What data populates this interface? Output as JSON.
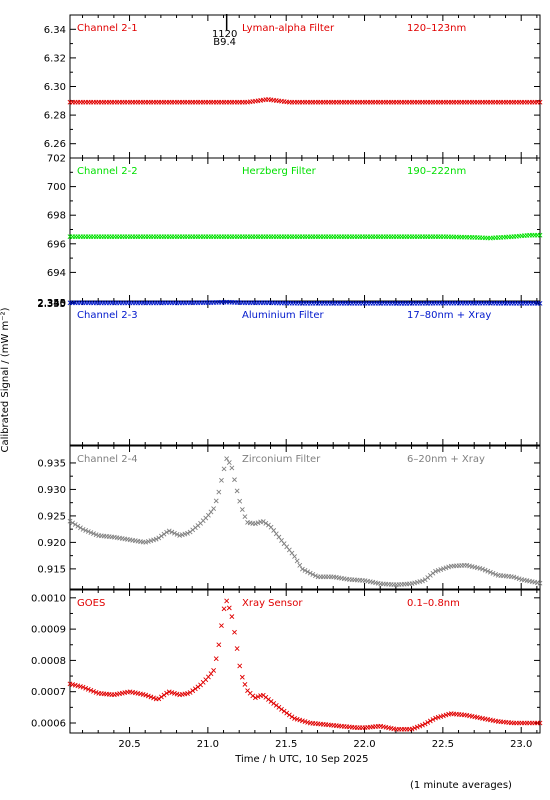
{
  "chart_data": {
    "type": "scatter",
    "xlabel": "Time / h UTC, 10 Sep 2025",
    "ylabel": "Calibrated Signal / (mW m⁻²)",
    "xlim": [
      20.12,
      23.12
    ],
    "xticks": [
      20.5,
      21.0,
      21.5,
      22.0,
      22.5,
      23.0
    ],
    "xtick_labels": [
      "20.5",
      "21.0",
      "21.5",
      "22.0",
      "22.5",
      "23.0"
    ],
    "footnote": "(1 minute averages)",
    "event_marker": {
      "x": 21.12,
      "label_top": "1120",
      "label_bottom": "B9.4"
    },
    "panels": [
      {
        "channel": "Channel 2-1",
        "filter": "Lyman-alpha Filter",
        "band": "120–123nm",
        "color": "#e00000",
        "marker": "x",
        "ylim": [
          6.25,
          6.35
        ],
        "yticks": [
          6.26,
          6.28,
          6.3,
          6.32,
          6.34
        ],
        "ytick_labels": [
          "6.26",
          "6.28",
          "6.30",
          "6.32",
          "6.34"
        ],
        "points": [
          [
            20.12,
            6.289
          ],
          [
            20.5,
            6.289
          ],
          [
            21.0,
            6.289
          ],
          [
            21.25,
            6.289
          ],
          [
            21.32,
            6.29
          ],
          [
            21.38,
            6.291
          ],
          [
            21.45,
            6.29
          ],
          [
            21.52,
            6.289
          ],
          [
            22.0,
            6.289
          ],
          [
            22.5,
            6.289
          ],
          [
            23.12,
            6.289
          ]
        ]
      },
      {
        "channel": "Channel 2-2",
        "filter": "Herzberg Filter",
        "band": "190–222nm",
        "color": "#00e000",
        "marker": "x",
        "ylim": [
          692.0,
          702.0
        ],
        "yticks": [
          694,
          696,
          698,
          700,
          702
        ],
        "ytick_labels": [
          "694",
          "696",
          "698",
          "700",
          "702"
        ],
        "points": [
          [
            20.12,
            696.5
          ],
          [
            20.5,
            696.5
          ],
          [
            21.0,
            696.5
          ],
          [
            21.5,
            696.5
          ],
          [
            22.0,
            696.5
          ],
          [
            22.5,
            696.5
          ],
          [
            22.7,
            696.45
          ],
          [
            22.8,
            696.4
          ],
          [
            22.95,
            696.5
          ],
          [
            23.05,
            696.6
          ],
          [
            23.12,
            696.6
          ]
        ]
      },
      {
        "channel": "Channel 2-3",
        "filter": "Aluminium Filter",
        "band": "17–80nm + Xray",
        "color": "#0018cc",
        "marker": "x",
        "ylim": [
          0.3345,
          2.3545
        ],
        "yticks": [
          2.335,
          2.34,
          2.345,
          2.35
        ],
        "ytick_labels": [
          "2.335",
          "2.340",
          "2.345",
          "2.350"
        ],
        "points": [
          [
            20.12,
            2.343
          ],
          [
            20.2,
            2.3425
          ],
          [
            20.3,
            2.3415
          ],
          [
            20.4,
            2.3412
          ],
          [
            20.5,
            2.341
          ],
          [
            20.6,
            2.3405
          ],
          [
            20.68,
            2.3412
          ],
          [
            20.75,
            2.3422
          ],
          [
            20.8,
            2.3415
          ],
          [
            20.85,
            2.3418
          ],
          [
            20.92,
            2.343
          ],
          [
            21.0,
            2.3447
          ],
          [
            21.03,
            2.3453
          ],
          [
            21.06,
            2.3488
          ],
          [
            21.09,
            2.3505
          ],
          [
            21.11,
            2.3518
          ],
          [
            21.14,
            2.3508
          ],
          [
            21.17,
            2.348
          ],
          [
            21.2,
            2.346
          ],
          [
            21.23,
            2.3432
          ],
          [
            21.27,
            2.3423
          ],
          [
            21.3,
            2.3428
          ],
          [
            21.35,
            2.3432
          ],
          [
            21.4,
            2.3425
          ],
          [
            21.45,
            2.3398
          ],
          [
            21.52,
            2.3378
          ],
          [
            21.6,
            2.336
          ],
          [
            21.7,
            2.3357
          ],
          [
            21.8,
            2.3357
          ],
          [
            21.9,
            2.3353
          ],
          [
            22.0,
            2.335
          ],
          [
            22.1,
            2.335
          ],
          [
            22.2,
            2.3348
          ],
          [
            22.3,
            2.3348
          ],
          [
            22.38,
            2.3354
          ],
          [
            22.45,
            2.3368
          ],
          [
            22.55,
            2.3375
          ],
          [
            22.65,
            2.3374
          ],
          [
            22.75,
            2.337
          ],
          [
            22.85,
            2.3365
          ],
          [
            22.95,
            2.3365
          ],
          [
            23.0,
            2.3355
          ],
          [
            23.12,
            2.3353
          ]
        ]
      },
      {
        "channel": "Channel 2-4",
        "filter": "Zirconium Filter",
        "band": "6–20nm + Xray",
        "color": "#808080",
        "marker": "x",
        "ylim": [
          0.9112,
          0.9382
        ],
        "yticks": [
          0.915,
          0.92,
          0.925,
          0.93,
          0.935
        ],
        "ytick_labels": [
          "0.915",
          "0.920",
          "0.925",
          "0.930",
          "0.935"
        ],
        "points": [
          [
            20.12,
            0.924
          ],
          [
            20.2,
            0.9225
          ],
          [
            20.3,
            0.9213
          ],
          [
            20.4,
            0.921
          ],
          [
            20.5,
            0.9205
          ],
          [
            20.6,
            0.92
          ],
          [
            20.68,
            0.9207
          ],
          [
            20.75,
            0.9222
          ],
          [
            20.82,
            0.9213
          ],
          [
            20.88,
            0.9218
          ],
          [
            20.95,
            0.9235
          ],
          [
            21.0,
            0.925
          ],
          [
            21.04,
            0.9265
          ],
          [
            21.07,
            0.9295
          ],
          [
            21.1,
            0.9335
          ],
          [
            21.12,
            0.9358
          ],
          [
            21.15,
            0.9345
          ],
          [
            21.18,
            0.9305
          ],
          [
            21.21,
            0.927
          ],
          [
            21.25,
            0.9238
          ],
          [
            21.3,
            0.9235
          ],
          [
            21.35,
            0.924
          ],
          [
            21.4,
            0.923
          ],
          [
            21.48,
            0.92
          ],
          [
            21.55,
            0.9175
          ],
          [
            21.6,
            0.915
          ],
          [
            21.7,
            0.9135
          ],
          [
            21.8,
            0.9135
          ],
          [
            21.9,
            0.913
          ],
          [
            22.0,
            0.9128
          ],
          [
            22.1,
            0.9122
          ],
          [
            22.2,
            0.912
          ],
          [
            22.3,
            0.9122
          ],
          [
            22.38,
            0.9128
          ],
          [
            22.45,
            0.9145
          ],
          [
            22.55,
            0.9155
          ],
          [
            22.65,
            0.9157
          ],
          [
            22.75,
            0.915
          ],
          [
            22.85,
            0.9138
          ],
          [
            22.95,
            0.9135
          ],
          [
            23.0,
            0.913
          ],
          [
            23.12,
            0.9123
          ]
        ]
      },
      {
        "channel": "GOES",
        "filter": "Xray Sensor",
        "band": "0.1–0.8nm",
        "color": "#e00000",
        "marker": "x",
        "ylim": [
          0.000568,
          0.001025
        ],
        "yticks": [
          0.0006,
          0.0007,
          0.0008,
          0.0009,
          0.001
        ],
        "ytick_labels": [
          "0.0006",
          "0.0007",
          "0.0008",
          "0.0009",
          "0.0010"
        ],
        "points": [
          [
            20.12,
            0.000725
          ],
          [
            20.2,
            0.000715
          ],
          [
            20.3,
            0.000695
          ],
          [
            20.4,
            0.00069
          ],
          [
            20.5,
            0.0007
          ],
          [
            20.6,
            0.00069
          ],
          [
            20.68,
            0.000675
          ],
          [
            20.75,
            0.0007
          ],
          [
            20.82,
            0.00069
          ],
          [
            20.88,
            0.000695
          ],
          [
            20.95,
            0.00072
          ],
          [
            21.0,
            0.000745
          ],
          [
            21.04,
            0.00077
          ],
          [
            21.07,
            0.00085
          ],
          [
            21.1,
            0.00096
          ],
          [
            21.12,
            0.00099
          ],
          [
            21.15,
            0.00095
          ],
          [
            21.18,
            0.00086
          ],
          [
            21.21,
            0.00076
          ],
          [
            21.25,
            0.000705
          ],
          [
            21.3,
            0.00068
          ],
          [
            21.35,
            0.00069
          ],
          [
            21.4,
            0.00067
          ],
          [
            21.48,
            0.00064
          ],
          [
            21.55,
            0.000615
          ],
          [
            21.65,
            0.0006
          ],
          [
            21.75,
            0.000595
          ],
          [
            21.85,
            0.00059
          ],
          [
            21.95,
            0.000585
          ],
          [
            22.0,
            0.000585
          ],
          [
            22.1,
            0.00059
          ],
          [
            22.2,
            0.00058
          ],
          [
            22.3,
            0.00058
          ],
          [
            22.38,
            0.000595
          ],
          [
            22.45,
            0.000615
          ],
          [
            22.55,
            0.00063
          ],
          [
            22.65,
            0.000625
          ],
          [
            22.75,
            0.000615
          ],
          [
            22.85,
            0.000605
          ],
          [
            22.95,
            0.0006
          ],
          [
            23.0,
            0.0006
          ],
          [
            23.12,
            0.0006
          ]
        ]
      }
    ]
  }
}
